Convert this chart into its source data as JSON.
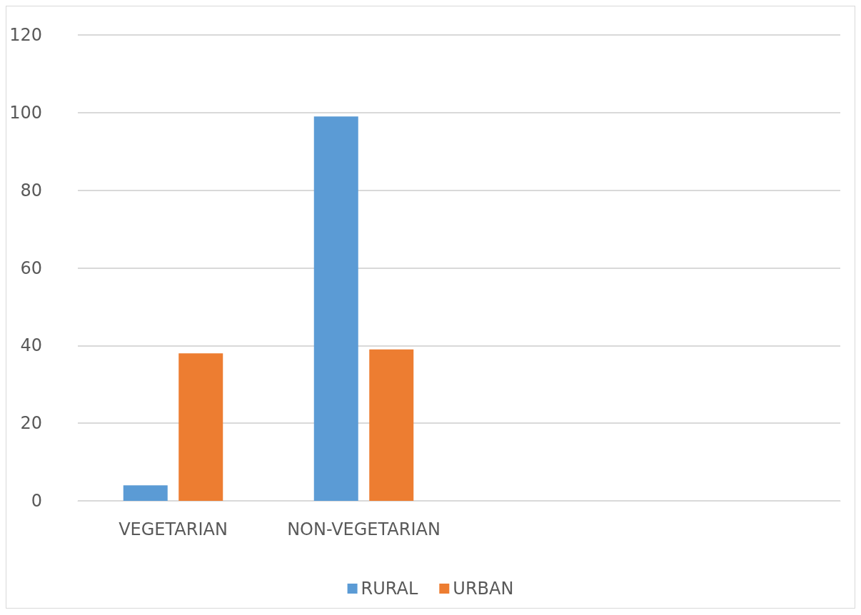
{
  "chart_data": {
    "type": "bar",
    "categories": [
      "VEGETARIAN",
      "NON-VEGETARIAN",
      null,
      null
    ],
    "series": [
      {
        "name": "RURAL",
        "color": "#5b9bd5",
        "values": [
          4,
          99,
          null,
          null
        ]
      },
      {
        "name": "URBAN",
        "color": "#ed7d31",
        "values": [
          38,
          39,
          null,
          null
        ]
      }
    ],
    "ylim": [
      0,
      120
    ],
    "yticks": [
      0,
      20,
      40,
      60,
      80,
      100,
      120
    ],
    "grid": "y",
    "legend": "bottom"
  }
}
